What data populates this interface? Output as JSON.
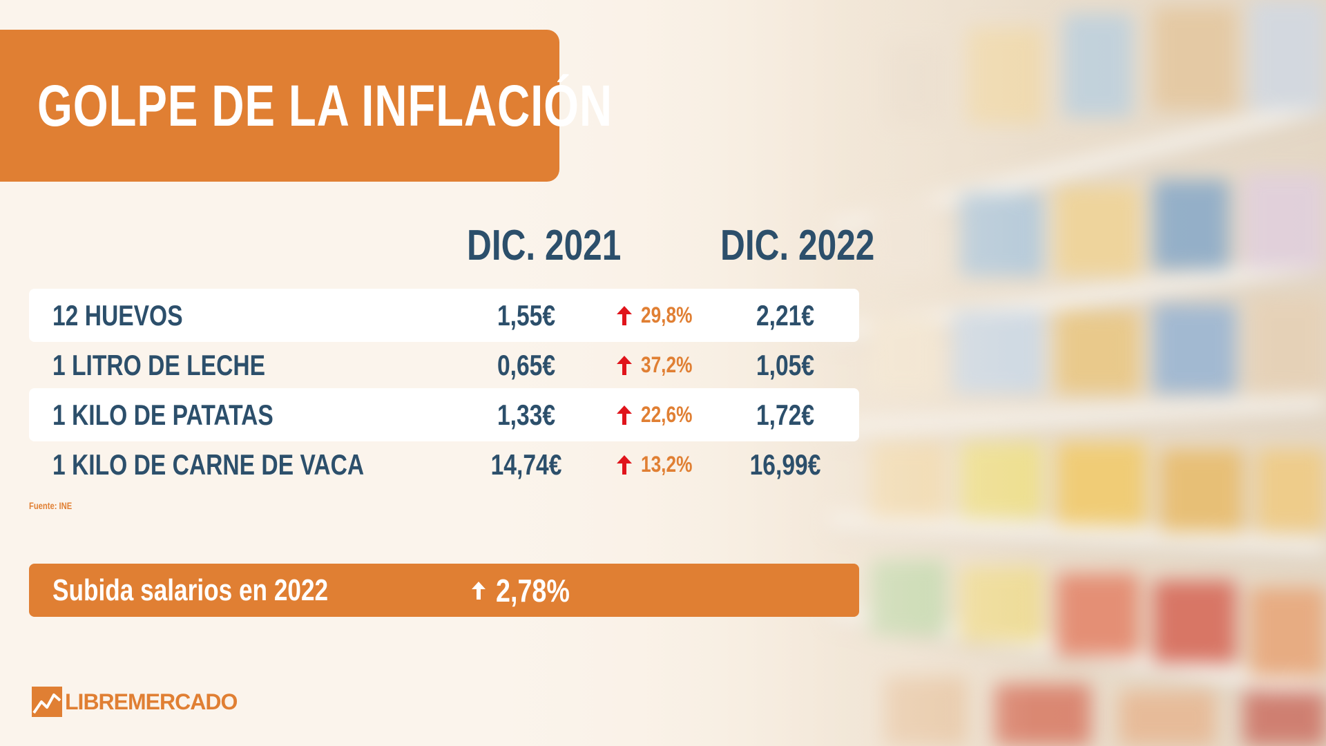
{
  "title": "GOLPE DE LA INFLACIÓN",
  "columns": {
    "dec_2021": "DIC. 2021",
    "dec_2022": "DIC. 2022"
  },
  "rows": [
    {
      "item": "12 HUEVOS",
      "price_2021": "1,55€",
      "change": "29,8%",
      "price_2022": "2,21€"
    },
    {
      "item": "1 LITRO DE LECHE",
      "price_2021": "0,65€",
      "change": "37,2%",
      "price_2022": "1,05€"
    },
    {
      "item": "1 KILO DE PATATAS",
      "price_2021": "1,33€",
      "change": "22,6%",
      "price_2022": "1,72€"
    },
    {
      "item": "1 KILO DE CARNE DE VACA",
      "price_2021": "14,74€",
      "change": "13,2%",
      "price_2022": "16,99€"
    }
  ],
  "source": "Fuente: INE",
  "salary": {
    "label": "Subida salarios en 2022",
    "value": "2,78%"
  },
  "logo": {
    "text": "LIBREMERCADO",
    "icon": "chart-line-logo-icon"
  },
  "icons": {
    "change_arrow": "arrow-up-icon",
    "salary_arrow": "arrow-up-icon"
  },
  "colors": {
    "accent_orange": "#e07f33",
    "text_navy": "#2c4f6b",
    "arrow_red": "#e0141b",
    "white": "#ffffff"
  }
}
